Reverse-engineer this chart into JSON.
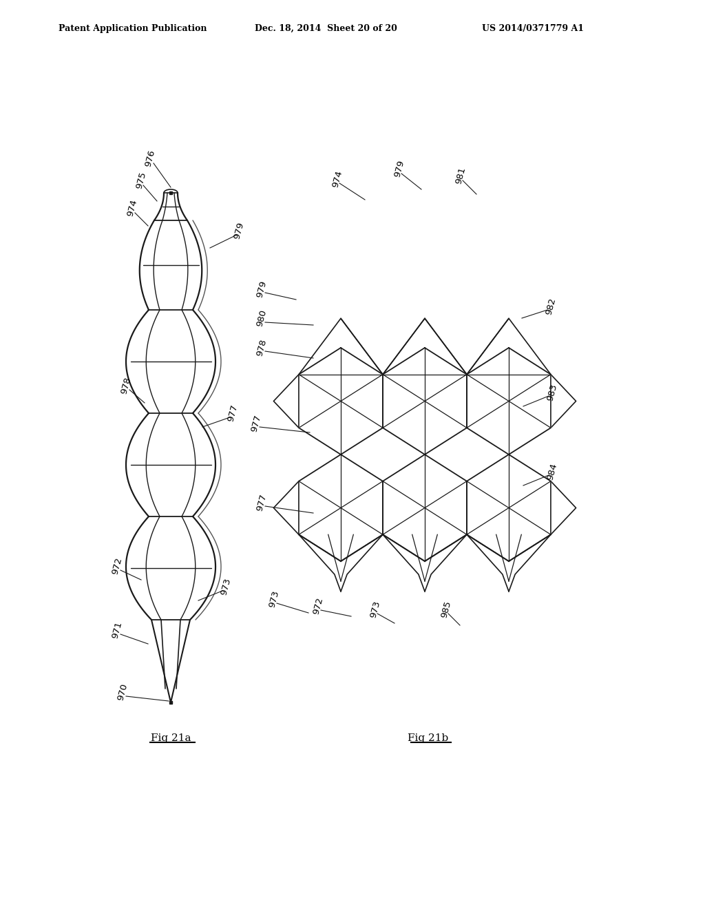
{
  "bg_color": "#ffffff",
  "header_left": "Patent Application Publication",
  "header_mid": "Dec. 18, 2014  Sheet 20 of 20",
  "header_right": "US 2014/0371779 A1",
  "fig_a_label": "Fig 21a",
  "fig_b_label": "Fig 21b",
  "line_color": "#1a1a1a",
  "label_color": "#000000",
  "label_fontsize": 9.5,
  "header_fontsize": 9
}
